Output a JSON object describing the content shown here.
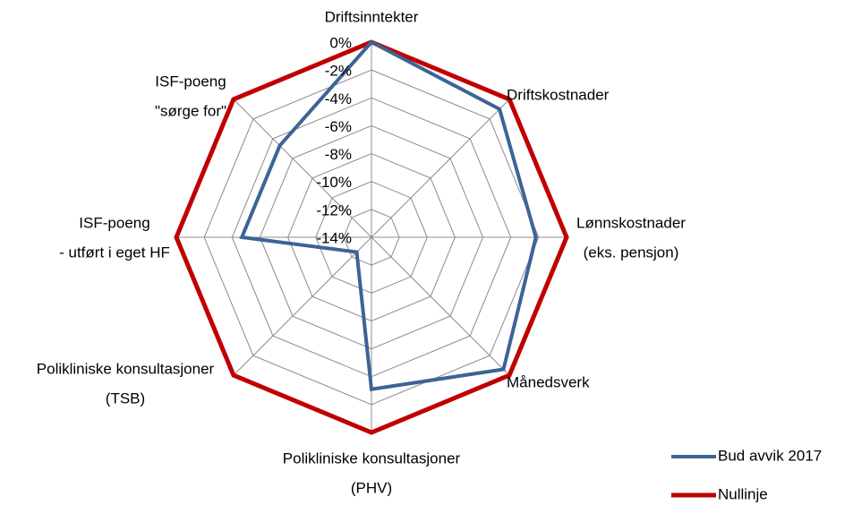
{
  "chart_data": {
    "type": "radar",
    "categories": [
      [
        "Driftsinntekter"
      ],
      [
        "Driftskostnader"
      ],
      [
        "Lønnskostnader",
        "(eks. pensjon)"
      ],
      [
        "Månedsverk"
      ],
      [
        "Polikliniske konsultasjoner",
        "(PHV)"
      ],
      [
        "Polikliniske konsultasjoner",
        "(TSB)"
      ],
      [
        "ISF-poeng",
        "- utført i eget HF"
      ],
      [
        "ISF-poeng",
        "\"sørge for\""
      ]
    ],
    "series": [
      {
        "name": "Bud avvik 2017",
        "color": "#3c6496",
        "values": [
          0,
          -1,
          -2.2,
          -0.6,
          -3.1,
          -12.5,
          -4.7,
          -4.7
        ]
      },
      {
        "name": "Nullinje",
        "color": "#c00000",
        "values": [
          0,
          0,
          0,
          0,
          0,
          0,
          0,
          0
        ]
      }
    ],
    "ylim": [
      -14,
      0
    ],
    "yticks": [
      {
        "value": 0,
        "label": "0%"
      },
      {
        "value": -2,
        "label": "-2%"
      },
      {
        "value": -4,
        "label": "-4%"
      },
      {
        "value": -6,
        "label": "-6%"
      },
      {
        "value": -8,
        "label": "-8%"
      },
      {
        "value": -10,
        "label": "-10%"
      },
      {
        "value": -12,
        "label": "-12%"
      },
      {
        "value": -14,
        "label": "-14%"
      }
    ],
    "grid": true,
    "legend": "bottom-right"
  }
}
